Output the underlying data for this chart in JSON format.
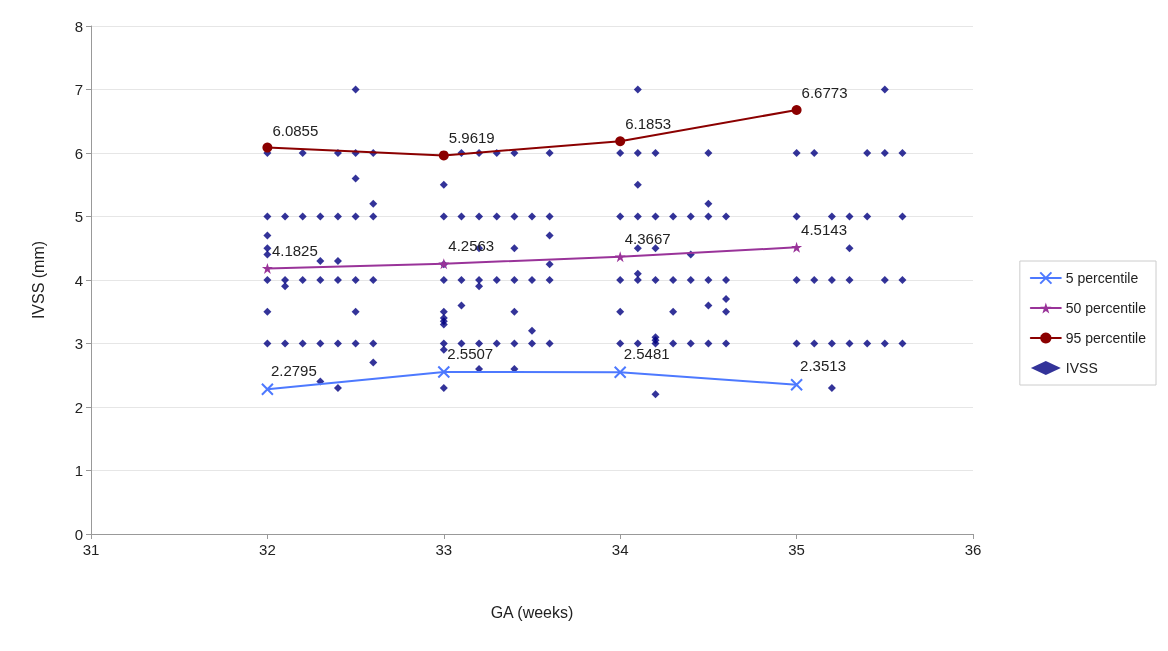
{
  "chart_data": {
    "type": "line",
    "xlabel": "GA (weeks)",
    "ylabel": "IVSS (mm)",
    "xlim": [
      31,
      36
    ],
    "xticks": [
      31,
      32,
      33,
      34,
      35,
      36
    ],
    "ylim": [
      0,
      8
    ],
    "yticks": [
      0,
      1,
      2,
      3,
      4,
      5,
      6,
      7,
      8
    ],
    "grid": "y",
    "legend": "right",
    "series": [
      {
        "name": "5 percentile",
        "color": "#4d79ff",
        "marker": "cross",
        "x": [
          32,
          33,
          34,
          35
        ],
        "values": [
          2.2795,
          2.5507,
          2.5481,
          2.3513
        ],
        "value_labels": [
          "2.2795",
          "2.5507",
          "2.5481",
          "2.3513"
        ]
      },
      {
        "name": "50 percentile",
        "color": "#993399",
        "marker": "star",
        "x": [
          32,
          33,
          34,
          35
        ],
        "values": [
          4.1825,
          4.2563,
          4.3667,
          4.5143
        ],
        "value_labels": [
          "4.1825",
          "4.2563",
          "4.3667",
          "4.5143"
        ]
      },
      {
        "name": "95 percentile",
        "color": "#8b0000",
        "marker": "circle",
        "x": [
          32,
          33,
          34,
          35
        ],
        "values": [
          6.0855,
          5.9619,
          6.1853,
          6.6773
        ],
        "value_labels": [
          "6.0855",
          "5.9619",
          "6.1853",
          "6.6773"
        ]
      },
      {
        "name": "IVSS",
        "type": "scatter",
        "color": "#000080",
        "marker": "diamond",
        "x": [
          32,
          32,
          32,
          32,
          32,
          32,
          32,
          32,
          32.1,
          32.1,
          32.1,
          32.1,
          32.2,
          32.2,
          32.2,
          32.2,
          32.3,
          32.3,
          32.3,
          32.3,
          32.3,
          32.4,
          32.4,
          32.4,
          32.4,
          32.4,
          32.4,
          32.5,
          32.5,
          32.5,
          32.5,
          32.5,
          32.5,
          32.5,
          32.6,
          32.6,
          32.6,
          32.6,
          32.6,
          32.6,
          33,
          33,
          33,
          33,
          33,
          33,
          33,
          33,
          33,
          33,
          33,
          33.1,
          33.1,
          33.1,
          33.1,
          33.1,
          33.2,
          33.2,
          33.2,
          33.2,
          33.2,
          33.2,
          33.2,
          33.3,
          33.3,
          33.3,
          33.3,
          33.4,
          33.4,
          33.4,
          33.4,
          33.4,
          33.4,
          33.4,
          33.5,
          33.5,
          33.5,
          33.5,
          33.6,
          33.6,
          33.6,
          33.6,
          33.6,
          33.6,
          34,
          34,
          34,
          34,
          34,
          34.1,
          34.1,
          34.1,
          34.1,
          34.1,
          34.1,
          34.1,
          34.1,
          34.2,
          34.2,
          34.2,
          34.2,
          34.2,
          34.2,
          34.2,
          34.2,
          34.3,
          34.3,
          34.3,
          34.3,
          34.4,
          34.4,
          34.4,
          34.4,
          34.5,
          34.5,
          34.5,
          34.5,
          34.5,
          34.5,
          34.6,
          34.6,
          34.6,
          34.6,
          34.6,
          35,
          35,
          35,
          35,
          35.1,
          35.1,
          35.1,
          35.2,
          35.2,
          35.2,
          35.2,
          35.3,
          35.3,
          35.3,
          35.3,
          35.4,
          35.4,
          35.4,
          35.5,
          35.5,
          35.5,
          35.5,
          35.6,
          35.6,
          35.6,
          35.6
        ],
        "values": [
          6,
          5,
          4.7,
          4.5,
          4.4,
          4,
          3.5,
          3,
          5,
          4,
          3.9,
          3,
          6,
          5,
          4,
          3,
          5,
          4.3,
          4,
          3,
          2.4,
          6,
          5,
          4.3,
          4,
          3,
          2.3,
          7,
          6,
          5.6,
          5,
          4,
          3.5,
          3,
          6,
          5.2,
          5,
          4,
          3,
          2.7,
          5.5,
          5,
          4.25,
          4,
          3.5,
          3.4,
          3.35,
          3.3,
          3,
          2.9,
          2.3,
          6,
          5,
          4,
          3.6,
          3,
          6,
          5,
          4.5,
          4,
          3.9,
          3,
          2.6,
          6,
          5,
          4,
          3,
          6,
          5,
          4.5,
          4,
          3.5,
          3,
          2.6,
          5,
          4,
          3.2,
          3,
          6,
          5,
          4.7,
          4.25,
          4,
          3,
          6,
          5,
          4,
          3.5,
          3,
          7,
          6,
          5.5,
          5,
          4.5,
          4.1,
          4,
          3,
          6,
          5,
          4.5,
          4,
          3.1,
          3.05,
          3,
          2.2,
          5,
          4,
          3.5,
          3,
          5,
          4.4,
          4,
          3,
          6,
          5.2,
          5,
          4,
          3.6,
          3,
          5,
          4,
          3.7,
          3.5,
          3,
          6,
          5,
          4,
          3,
          6,
          4,
          3,
          5,
          4,
          3,
          2.3,
          5,
          4.5,
          4,
          3,
          6,
          5,
          3,
          7,
          6,
          4,
          3,
          6,
          5,
          4,
          3
        ]
      }
    ]
  }
}
